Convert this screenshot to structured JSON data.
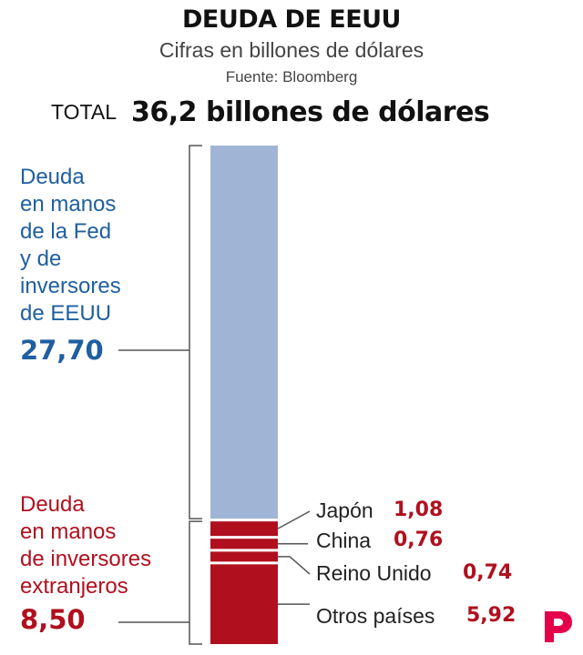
{
  "header": {
    "title": "DEUDA DE EEUU",
    "subtitle": "Cifras en billones de dólares",
    "source": "Fuente: Bloomberg",
    "total_label": "TOTAL",
    "total_value": "36,2 billones de dólares"
  },
  "groups": {
    "domestic": {
      "label_lines": [
        "Deuda",
        "en manos",
        "de la Fed",
        "y de",
        "inversores",
        "de EEUU"
      ],
      "value": "27,70"
    },
    "foreign": {
      "label_lines": [
        "Deuda",
        "en manos",
        "de inversores",
        "extranjeros"
      ],
      "value": "8,50"
    }
  },
  "chart_data": {
    "type": "bar",
    "stacked": true,
    "total": 36.2,
    "segments": [
      {
        "name": "Fed y de inversores de EEUU",
        "value": 27.7,
        "color": "#a0b5d5"
      },
      {
        "name": "Japón",
        "value": 1.08,
        "value_label": "1,08",
        "color": "#b0101e"
      },
      {
        "name": "China",
        "value": 0.76,
        "value_label": "0,76",
        "color": "#b0101e"
      },
      {
        "name": "Reino Unido",
        "value": 0.74,
        "value_label": "0,74",
        "color": "#b0101e"
      },
      {
        "name": "Otros países",
        "value": 5.92,
        "value_label": "5,92",
        "color": "#b0101e"
      }
    ]
  },
  "colors": {
    "domestic": "#1f5fa0",
    "foreign": "#b0101e",
    "bar_domestic": "#a0b5d5",
    "bar_foreign": "#b0101e",
    "brand": "#e5004b"
  },
  "logo": {
    "icon": "publico-p-logo-icon"
  }
}
